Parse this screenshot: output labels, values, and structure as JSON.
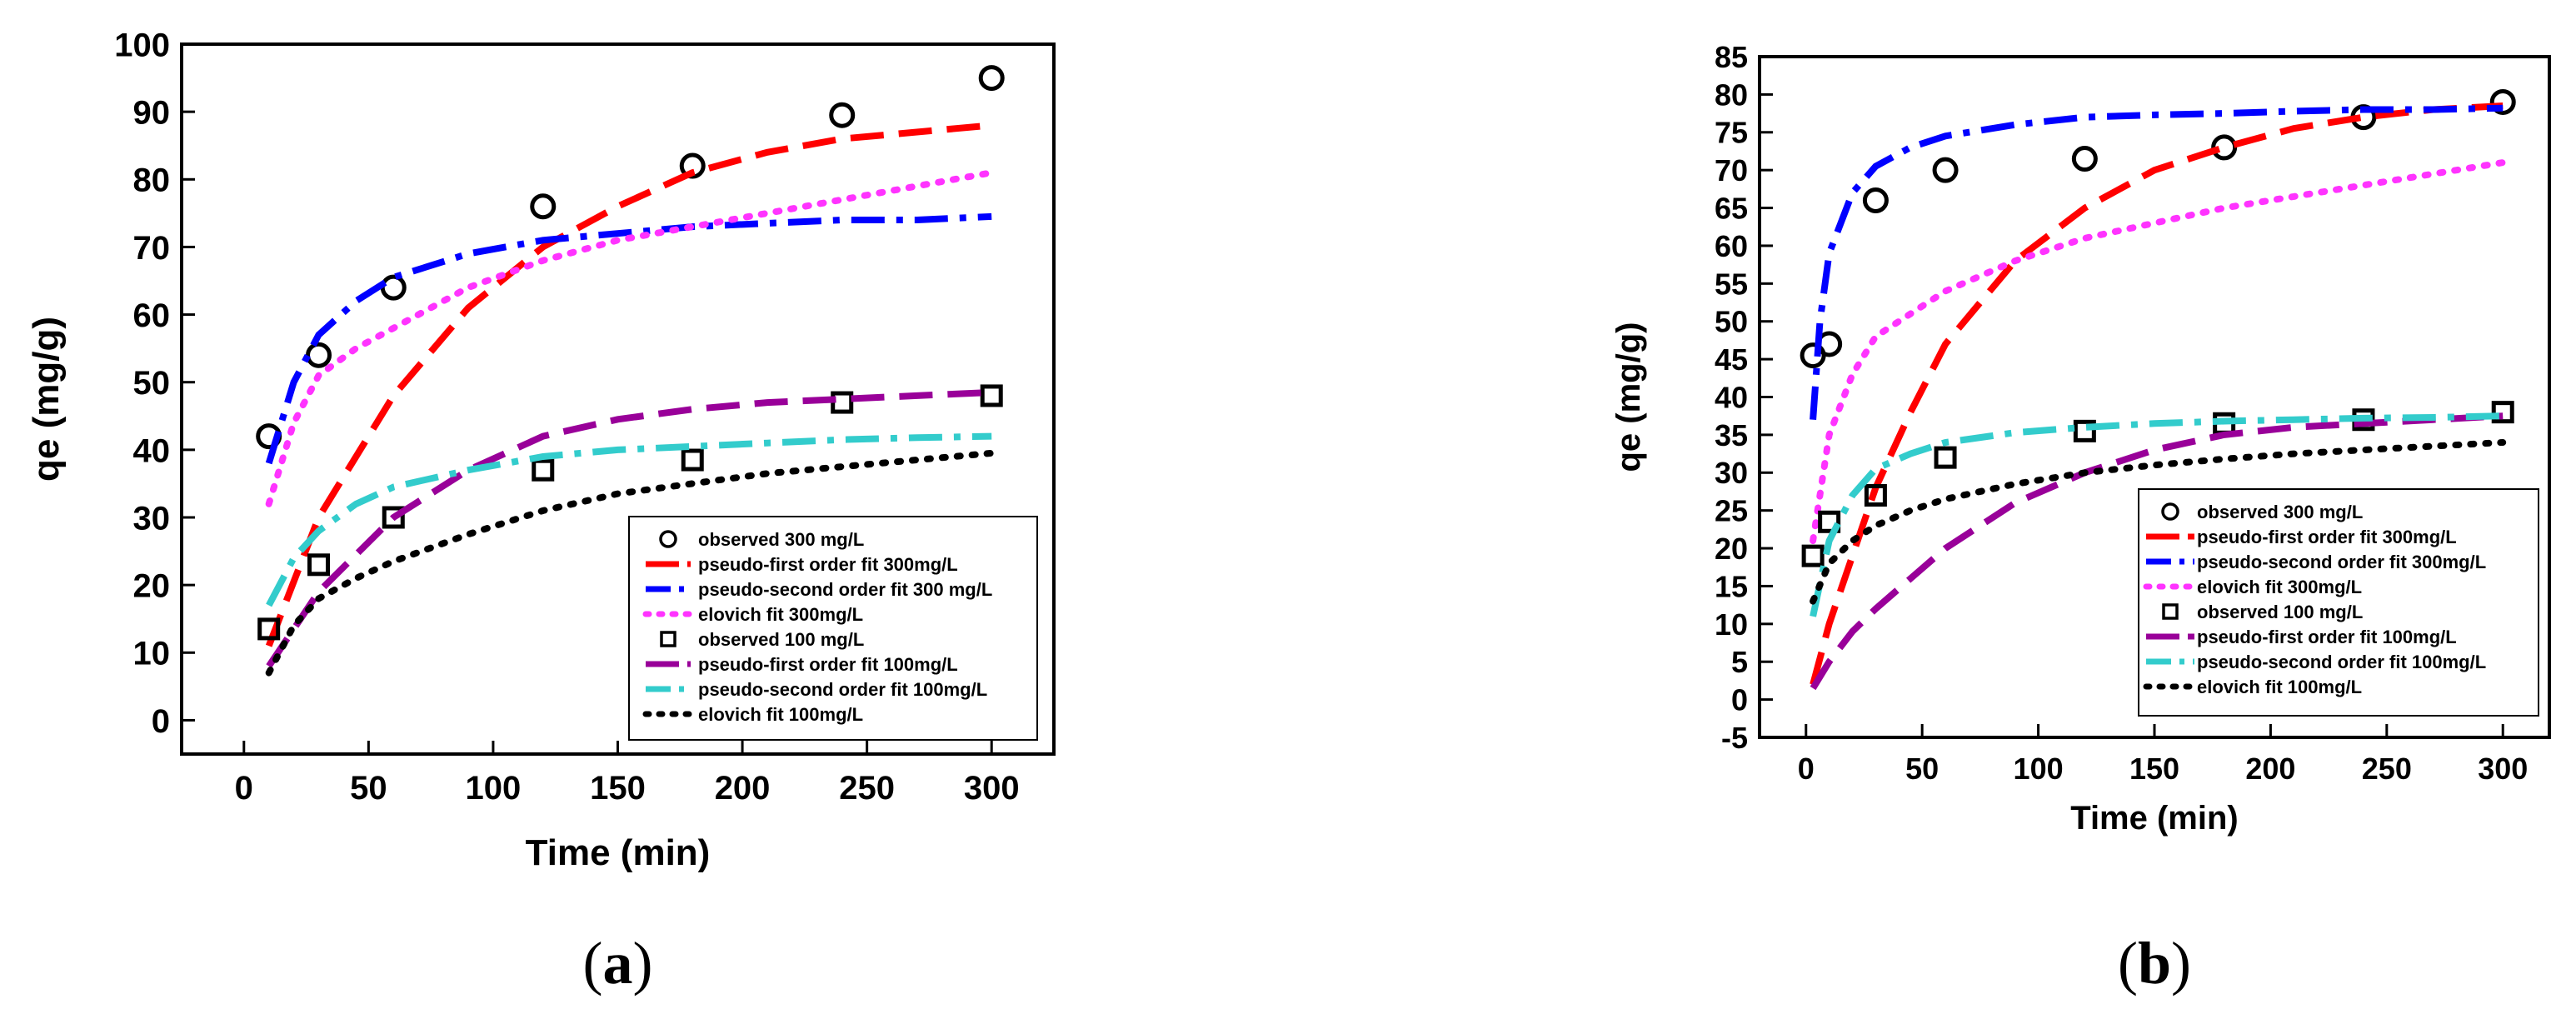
{
  "chart_data": [
    {
      "type": "scatter",
      "panel_label": "(a)",
      "xlabel": "Time (min)",
      "ylabel": "qe (mg/g)",
      "xlim": [
        -25,
        325
      ],
      "ylim": [
        -5,
        100
      ],
      "xticks": [
        0,
        50,
        100,
        150,
        200,
        250,
        300
      ],
      "yticks": [
        0,
        10,
        20,
        30,
        40,
        50,
        60,
        70,
        80,
        90,
        100
      ],
      "legend_position": "bottom-right",
      "series": [
        {
          "name": "observed 300 mg/L",
          "kind": "marker-circle",
          "color": "#000000",
          "x": [
            10,
            30,
            60,
            120,
            180,
            240,
            300
          ],
          "y": [
            42,
            54,
            64,
            76,
            82,
            89.5,
            95
          ]
        },
        {
          "name": "pseudo-first order fit 300mg/L",
          "kind": "dash",
          "color": "#ff0000",
          "x": [
            10,
            30,
            60,
            90,
            120,
            150,
            180,
            210,
            240,
            270,
            300
          ],
          "y": [
            11,
            30,
            48,
            61,
            70,
            76,
            81,
            84,
            86,
            87,
            88
          ]
        },
        {
          "name": "pseudo-second order fit 300 mg/L",
          "kind": "dashdot",
          "color": "#0000ff",
          "x": [
            10,
            20,
            30,
            45,
            60,
            90,
            120,
            150,
            180,
            210,
            240,
            270,
            300
          ],
          "y": [
            38,
            50,
            57,
            62,
            65.5,
            69,
            71,
            72,
            73,
            73.5,
            74,
            74,
            74.5
          ]
        },
        {
          "name": "elovich fit 300mg/L",
          "kind": "dot",
          "color": "#ff33ff",
          "x": [
            10,
            20,
            30,
            45,
            60,
            90,
            120,
            150,
            180,
            210,
            240,
            270,
            300
          ],
          "y": [
            32,
            44,
            51,
            55,
            58,
            64,
            68,
            71,
            73,
            75,
            77,
            79,
            81
          ]
        },
        {
          "name": "observed 100 mg/L",
          "kind": "marker-square",
          "color": "#000000",
          "x": [
            10,
            30,
            60,
            120,
            180,
            240,
            300
          ],
          "y": [
            13.5,
            23,
            30,
            37,
            38.5,
            47,
            48
          ]
        },
        {
          "name": "pseudo-first order fit 100mg/L",
          "kind": "dash",
          "color": "#990099",
          "x": [
            10,
            30,
            60,
            90,
            120,
            150,
            180,
            210,
            240,
            270,
            300
          ],
          "y": [
            8,
            19,
            30,
            37,
            42,
            44.5,
            46,
            47,
            47.5,
            48,
            48.5
          ]
        },
        {
          "name": "pseudo-second order fit 100mg/L",
          "kind": "dashdot",
          "color": "#33cccc",
          "x": [
            10,
            20,
            30,
            45,
            60,
            90,
            120,
            150,
            180,
            210,
            240,
            270,
            300
          ],
          "y": [
            17,
            24,
            28,
            32,
            34.5,
            37,
            39,
            40,
            40.5,
            41,
            41.5,
            41.8,
            42
          ]
        },
        {
          "name": "elovich fit 100mg/L",
          "kind": "dot",
          "color": "#000000",
          "x": [
            10,
            20,
            30,
            45,
            60,
            90,
            120,
            150,
            180,
            210,
            240,
            270,
            300
          ],
          "y": [
            7,
            14,
            18,
            21,
            23.5,
            27.5,
            31,
            33.5,
            35,
            36.5,
            37.5,
            38.5,
            39.5
          ]
        }
      ]
    },
    {
      "type": "scatter",
      "panel_label": "(b)",
      "xlabel": "Time (min)",
      "ylabel": "qe (mg/g)",
      "xlim": [
        -20,
        320
      ],
      "ylim": [
        -5,
        85
      ],
      "xticks": [
        0,
        50,
        100,
        150,
        200,
        250,
        300
      ],
      "yticks": [
        -5,
        0,
        5,
        10,
        15,
        20,
        25,
        30,
        35,
        40,
        45,
        50,
        55,
        60,
        65,
        70,
        75,
        80,
        85
      ],
      "legend_position": "bottom-right",
      "series": [
        {
          "name": "observed 300 mg/L",
          "kind": "marker-circle",
          "color": "#000000",
          "x": [
            3,
            10,
            30,
            60,
            120,
            180,
            240,
            300
          ],
          "y": [
            45.5,
            47,
            66,
            70,
            71.5,
            73,
            77,
            79
          ]
        },
        {
          "name": "pseudo-first order fit 300mg/L",
          "kind": "dash",
          "color": "#ff0000",
          "x": [
            3,
            10,
            20,
            30,
            45,
            60,
            90,
            120,
            150,
            180,
            210,
            240,
            270,
            300
          ],
          "y": [
            2,
            10,
            19,
            28,
            38,
            47,
            58,
            65,
            70,
            73,
            75.5,
            77,
            78,
            78.5
          ]
        },
        {
          "name": "pseudo-second order fit 300mg/L",
          "kind": "dashdot",
          "color": "#0000ff",
          "x": [
            3,
            6,
            10,
            20,
            30,
            45,
            60,
            90,
            120,
            150,
            180,
            210,
            240,
            270,
            300
          ],
          "y": [
            37,
            50,
            59,
            67,
            70.5,
            73,
            74.5,
            76,
            77,
            77.3,
            77.5,
            77.8,
            78,
            78,
            78.2
          ]
        },
        {
          "name": "elovich fit 300mg/L",
          "kind": "dot",
          "color": "#ff33ff",
          "x": [
            3,
            10,
            20,
            30,
            45,
            60,
            90,
            120,
            150,
            180,
            210,
            240,
            270,
            300
          ],
          "y": [
            21,
            35,
            43,
            48,
            51,
            54,
            58,
            61,
            63,
            65,
            66.5,
            68,
            69.5,
            71
          ]
        },
        {
          "name": "observed 100 mg/L",
          "kind": "marker-square",
          "color": "#000000",
          "x": [
            3,
            10,
            30,
            60,
            120,
            180,
            240,
            300
          ],
          "y": [
            19,
            23.5,
            27,
            32,
            35.5,
            36.5,
            37,
            38
          ]
        },
        {
          "name": "pseudo-first order fit 100mg/L",
          "kind": "dash",
          "color": "#990099",
          "x": [
            3,
            10,
            20,
            30,
            45,
            60,
            90,
            120,
            150,
            180,
            210,
            240,
            270,
            300
          ],
          "y": [
            1.5,
            5,
            9,
            12,
            16,
            20,
            26,
            30,
            33,
            35,
            36,
            36.5,
            37,
            37.5
          ]
        },
        {
          "name": "pseudo-second order fit 100mg/L",
          "kind": "dashdot",
          "color": "#33cccc",
          "x": [
            3,
            10,
            20,
            30,
            45,
            60,
            90,
            120,
            150,
            180,
            210,
            240,
            270,
            300
          ],
          "y": [
            11,
            21,
            27,
            30.5,
            32.5,
            34,
            35.3,
            36,
            36.5,
            36.8,
            37,
            37.2,
            37.3,
            37.5
          ]
        },
        {
          "name": "elovich fit 100mg/L",
          "kind": "dot",
          "color": "#000000",
          "x": [
            3,
            10,
            20,
            30,
            45,
            60,
            90,
            120,
            150,
            180,
            210,
            240,
            270,
            300
          ],
          "y": [
            13,
            18,
            21,
            23,
            25,
            26.5,
            28.5,
            30,
            31,
            31.8,
            32.5,
            33,
            33.5,
            34
          ]
        }
      ]
    }
  ]
}
